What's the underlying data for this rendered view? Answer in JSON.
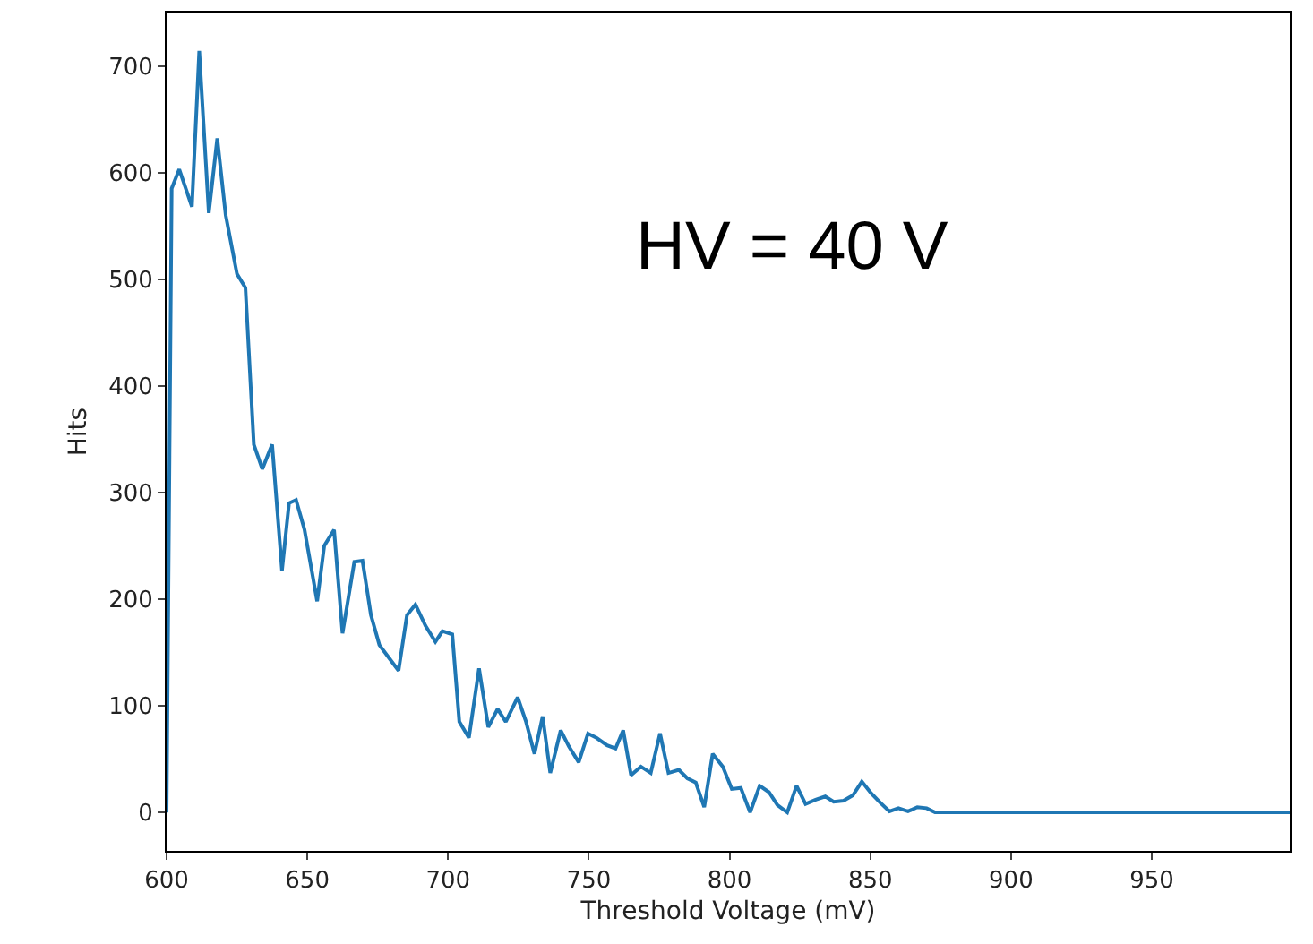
{
  "chart_data": {
    "type": "line",
    "xlabel": "Threshold Voltage (mV)",
    "ylabel": "Hits",
    "annotations": [
      "HV = 40 V"
    ],
    "x": [
      600,
      601.8,
      604.5,
      609,
      611.6,
      615,
      618,
      621,
      625,
      628,
      631,
      634,
      637.5,
      641,
      643.5,
      646,
      649,
      653.5,
      656,
      659.5,
      662.5,
      666.7,
      669.6,
      672.6,
      675.6,
      679,
      682.4,
      685.4,
      688.4,
      692,
      695.5,
      698,
      701.5,
      704,
      707.4,
      711,
      714.3,
      717.6,
      720.5,
      724.7,
      727.7,
      730.7,
      733.6,
      736.3,
      740,
      742.9,
      746.4,
      749.7,
      752.7,
      756.5,
      759.5,
      762.2,
      765,
      768.5,
      772,
      775.3,
      778.3,
      782,
      785,
      788,
      791,
      794,
      797.6,
      800.8,
      804,
      807.3,
      810.7,
      814,
      817,
      820.5,
      823.8,
      827,
      830.6,
      834,
      837,
      840.5,
      843.8,
      847,
      850.3,
      853.6,
      856.8,
      860,
      863.4,
      866.7,
      870,
      873,
      999
    ],
    "series": [
      {
        "color": "#1f77b4",
        "values": [
          0,
          585,
          603,
          568,
          714,
          562,
          632,
          560,
          505,
          492,
          345,
          322,
          345,
          227,
          290,
          293,
          265,
          198,
          250,
          265,
          168,
          235,
          236,
          185,
          157,
          145,
          133,
          185,
          195,
          175,
          160,
          170,
          167,
          85,
          70,
          135,
          80,
          97,
          85,
          108,
          85,
          55,
          90,
          37,
          77,
          62,
          47,
          74,
          70,
          63,
          60,
          77,
          35,
          43,
          37,
          74,
          37,
          40,
          32,
          28,
          5,
          55,
          43,
          22,
          23,
          0,
          25,
          19,
          7,
          0,
          25,
          8,
          12,
          15,
          10,
          11,
          16,
          29,
          18,
          9,
          1,
          4,
          1,
          5,
          4,
          0,
          0
        ]
      }
    ],
    "xlim": [
      600,
      999
    ],
    "ylim": [
      -36,
      750
    ],
    "xticks": [
      600,
      650,
      700,
      750,
      800,
      850,
      900,
      950
    ],
    "yticks": [
      0,
      100,
      200,
      300,
      400,
      500,
      600,
      700
    ],
    "grid": false,
    "marker": "none",
    "line_style": "solid"
  }
}
